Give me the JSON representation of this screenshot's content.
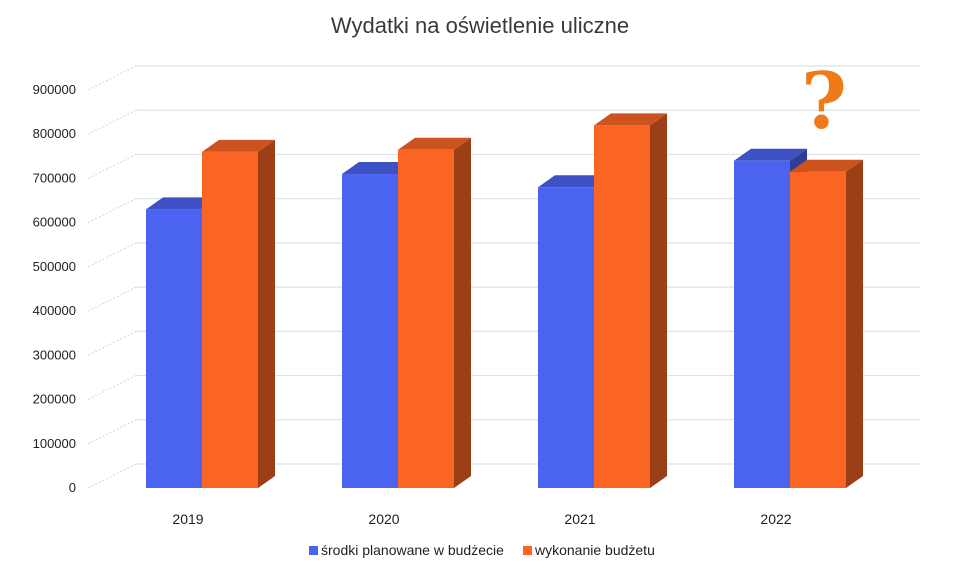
{
  "chart_data": {
    "type": "bar",
    "title": "Wydatki na oświetlenie uliczne",
    "categories": [
      "2019",
      "2020",
      "2021",
      "2022"
    ],
    "series": [
      {
        "name": "środki planowane w budżecie",
        "values": [
          630000,
          710000,
          680000,
          740000
        ],
        "color": "#4a63f0"
      },
      {
        "name": "wykonanie budżetu",
        "values": [
          760000,
          765000,
          820000,
          715000
        ],
        "color": "#fa6524"
      }
    ],
    "yticks": [
      0,
      100000,
      200000,
      300000,
      400000,
      500000,
      600000,
      700000,
      800000,
      900000
    ],
    "ylim": [
      0,
      900000
    ],
    "xlabel": "",
    "ylabel": "",
    "grid": true,
    "legend_position": "bottom",
    "annotation": "?",
    "annotation_color": "#ee7a1a"
  }
}
